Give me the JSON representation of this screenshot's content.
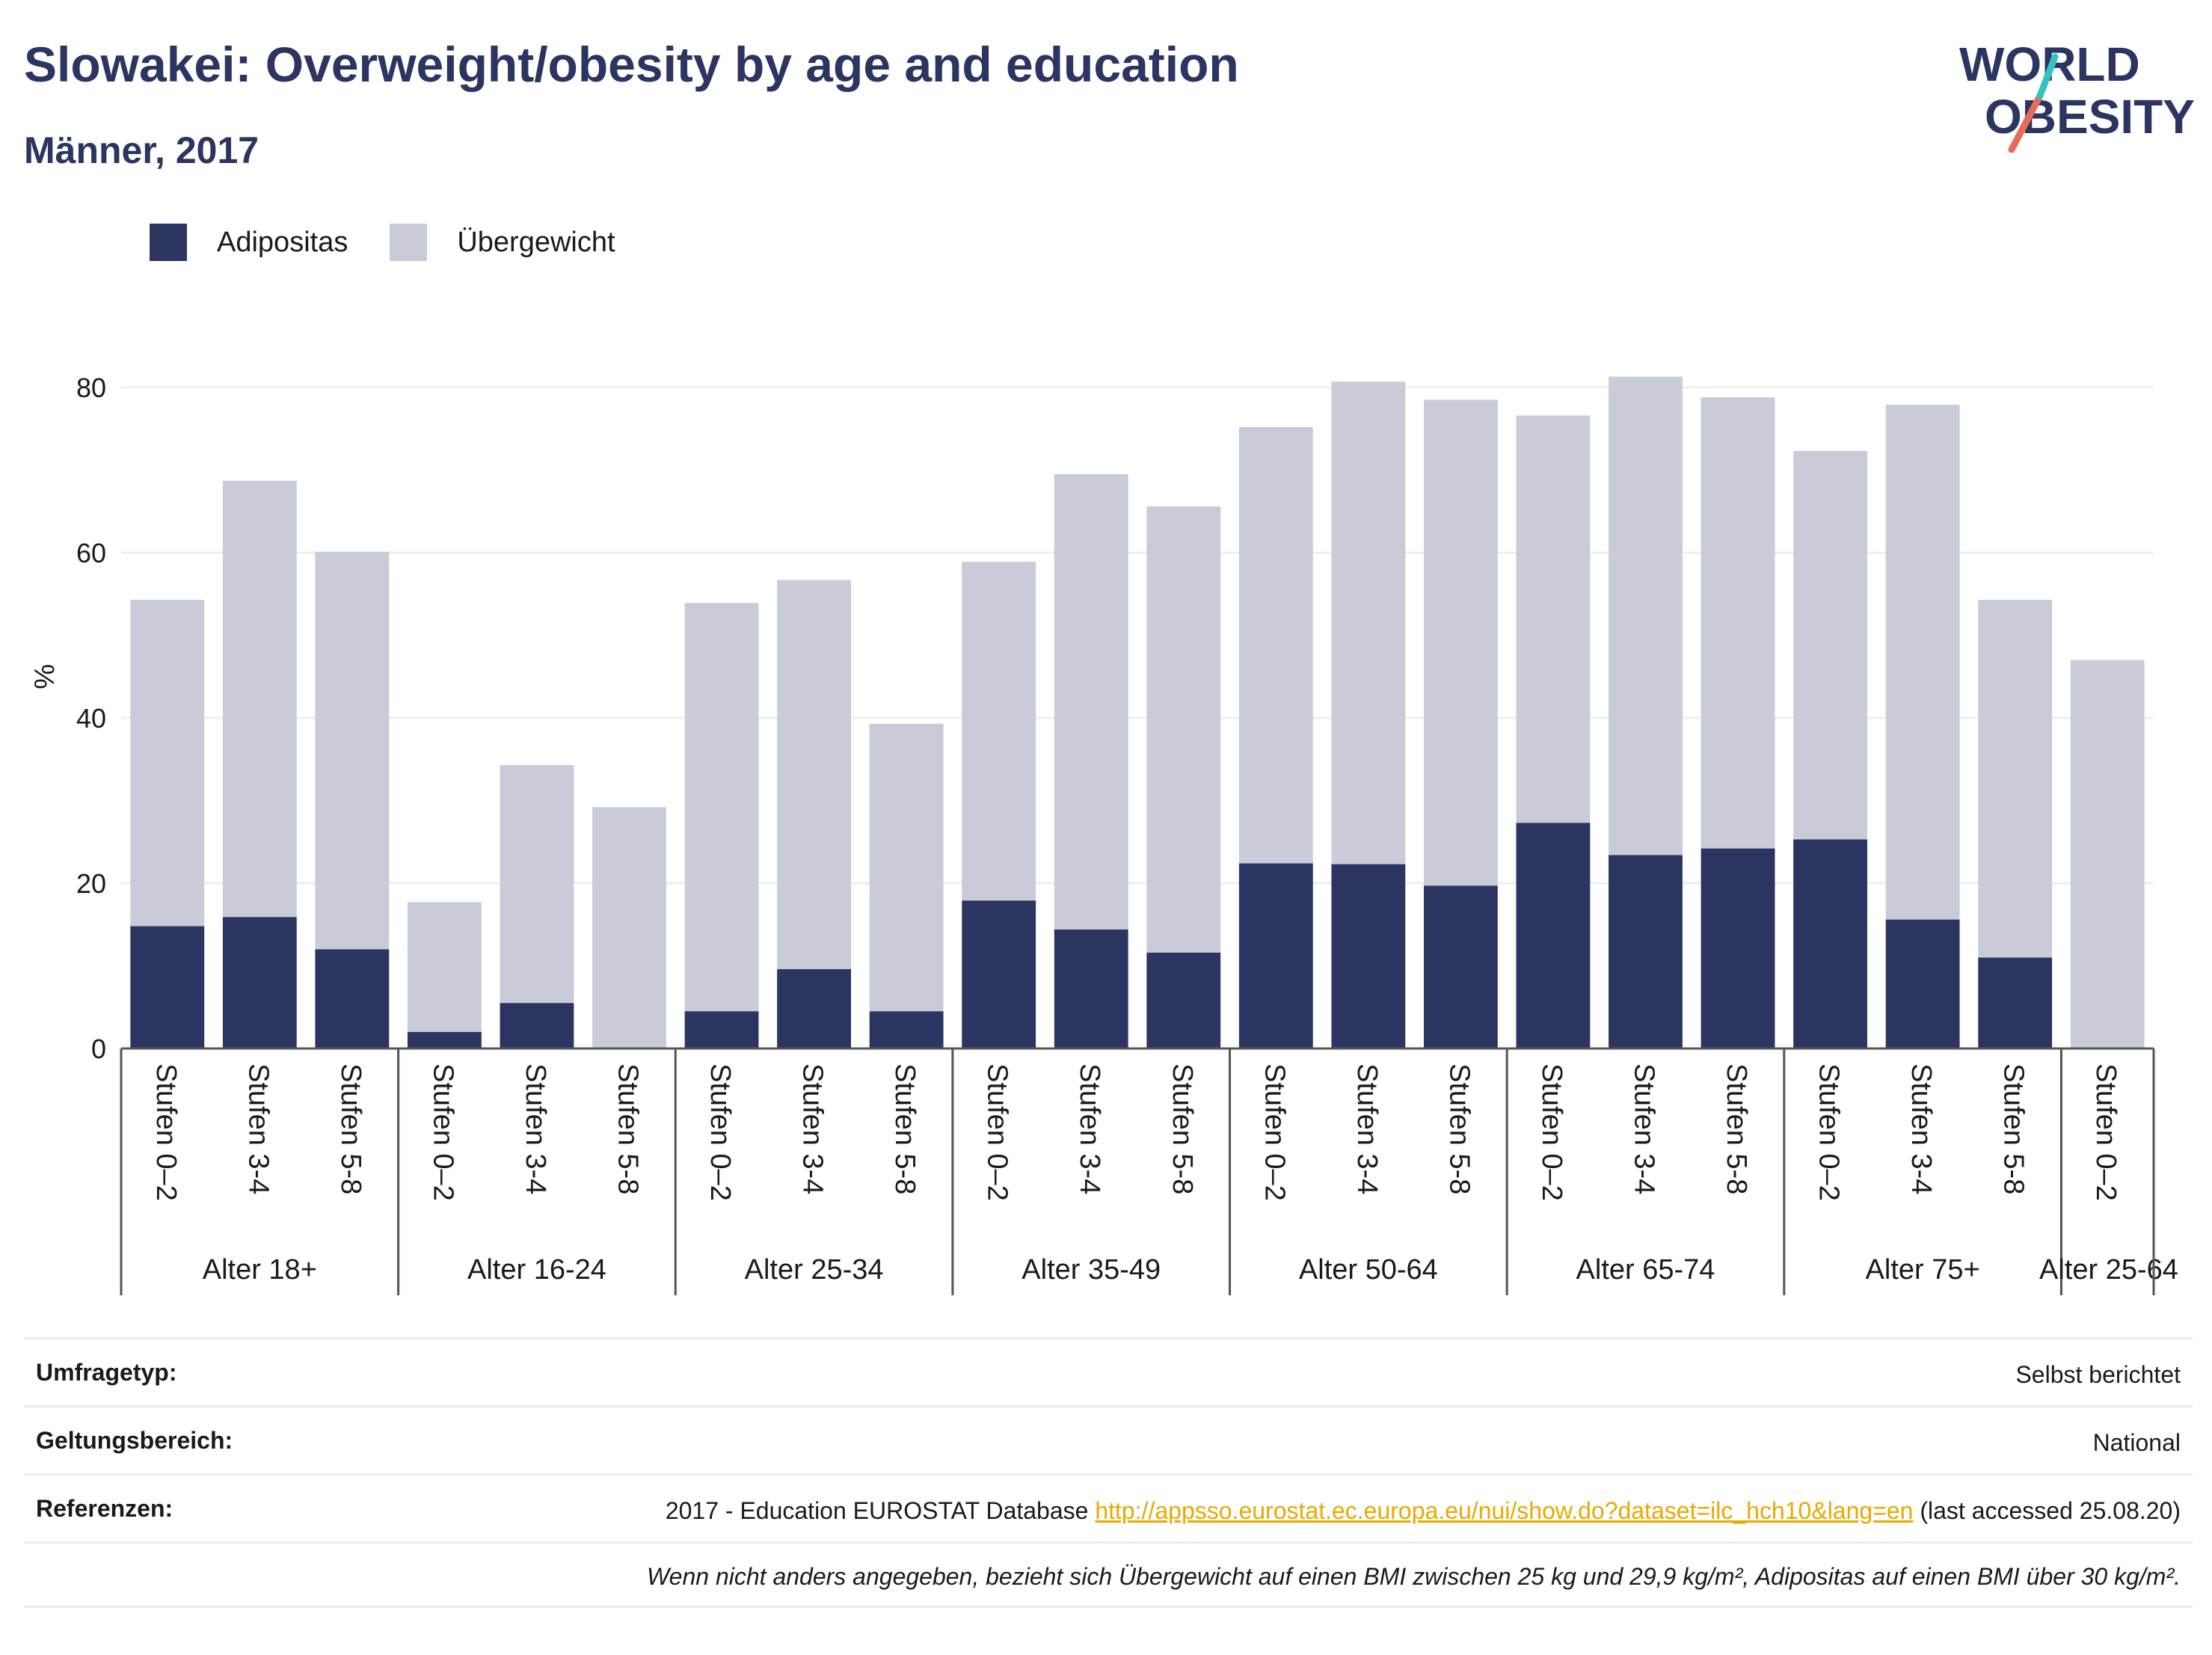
{
  "header": {
    "title": "Slowakei: Overweight/obesity by age and education",
    "subtitle": "Männer, 2017",
    "logo_line1": "WORLD",
    "logo_line2": "OBESITY"
  },
  "legend": {
    "items": [
      {
        "label": "Adipositas",
        "color": "#2b3561"
      },
      {
        "label": "Übergewicht",
        "color": "#cacbd8"
      }
    ]
  },
  "chart_data": {
    "type": "bar",
    "stacked": true,
    "ylabel": "%",
    "ylim": [
      0,
      90
    ],
    "yticks": [
      0,
      20,
      40,
      60,
      80
    ],
    "grid": true,
    "legend_position": "top-left",
    "groups": [
      {
        "label": "Alter 18+",
        "categories": [
          "Stufen 0–2",
          "Stufen 3-4",
          "Stufen 5-8"
        ]
      },
      {
        "label": "Alter 16-24",
        "categories": [
          "Stufen 0–2",
          "Stufen 3-4",
          "Stufen 5-8"
        ]
      },
      {
        "label": "Alter 25-34",
        "categories": [
          "Stufen 0–2",
          "Stufen 3-4",
          "Stufen 5-8"
        ]
      },
      {
        "label": "Alter 35-49",
        "categories": [
          "Stufen 0–2",
          "Stufen 3-4",
          "Stufen 5-8"
        ]
      },
      {
        "label": "Alter 50-64",
        "categories": [
          "Stufen 0–2",
          "Stufen 3-4",
          "Stufen 5-8"
        ]
      },
      {
        "label": "Alter 65-74",
        "categories": [
          "Stufen 0–2",
          "Stufen 3-4",
          "Stufen 5-8"
        ]
      },
      {
        "label": "Alter 75+",
        "categories": [
          "Stufen 0–2",
          "Stufen 3-4",
          "Stufen 5-8"
        ]
      },
      {
        "label": "Alter 25-64",
        "categories": [
          "Stufen 0–2"
        ]
      }
    ],
    "series": [
      {
        "name": "Adipositas",
        "color": "#2b3561",
        "values": [
          14.8,
          15.9,
          12.0,
          2.0,
          5.5,
          0,
          4.5,
          9.6,
          4.5,
          17.9,
          14.4,
          11.6,
          22.4,
          22.3,
          19.7,
          27.3,
          23.4,
          24.2,
          25.3,
          15.6,
          11.0,
          0
        ]
      },
      {
        "name": "Übergewicht",
        "color": "#cacbd8",
        "values": [
          39.5,
          52.8,
          48.1,
          15.7,
          28.8,
          29.2,
          49.4,
          47.1,
          34.8,
          41.0,
          55.1,
          54.0,
          52.8,
          58.4,
          58.8,
          49.3,
          57.9,
          54.6,
          47.0,
          62.3,
          43.3,
          47.0
        ]
      }
    ]
  },
  "meta": {
    "rows": [
      {
        "key": "Umfragetyp:",
        "value": "Selbst berichtet"
      },
      {
        "key": "Geltungsbereich:",
        "value": "National"
      }
    ],
    "ref_key": "Referenzen:",
    "ref_prefix": "2017 - Education EUROSTAT Database ",
    "ref_link": "http://appsso.eurostat.ec.europa.eu/nui/show.do?dataset=ilc_hch10&lang=en",
    "ref_suffix": " (last accessed 25.08.20)",
    "note": "Wenn nicht anders angegeben, bezieht sich Übergewicht auf einen BMI zwischen 25 kg und 29,9 kg/m², Adipositas auf einen BMI über 30 kg/m²."
  }
}
